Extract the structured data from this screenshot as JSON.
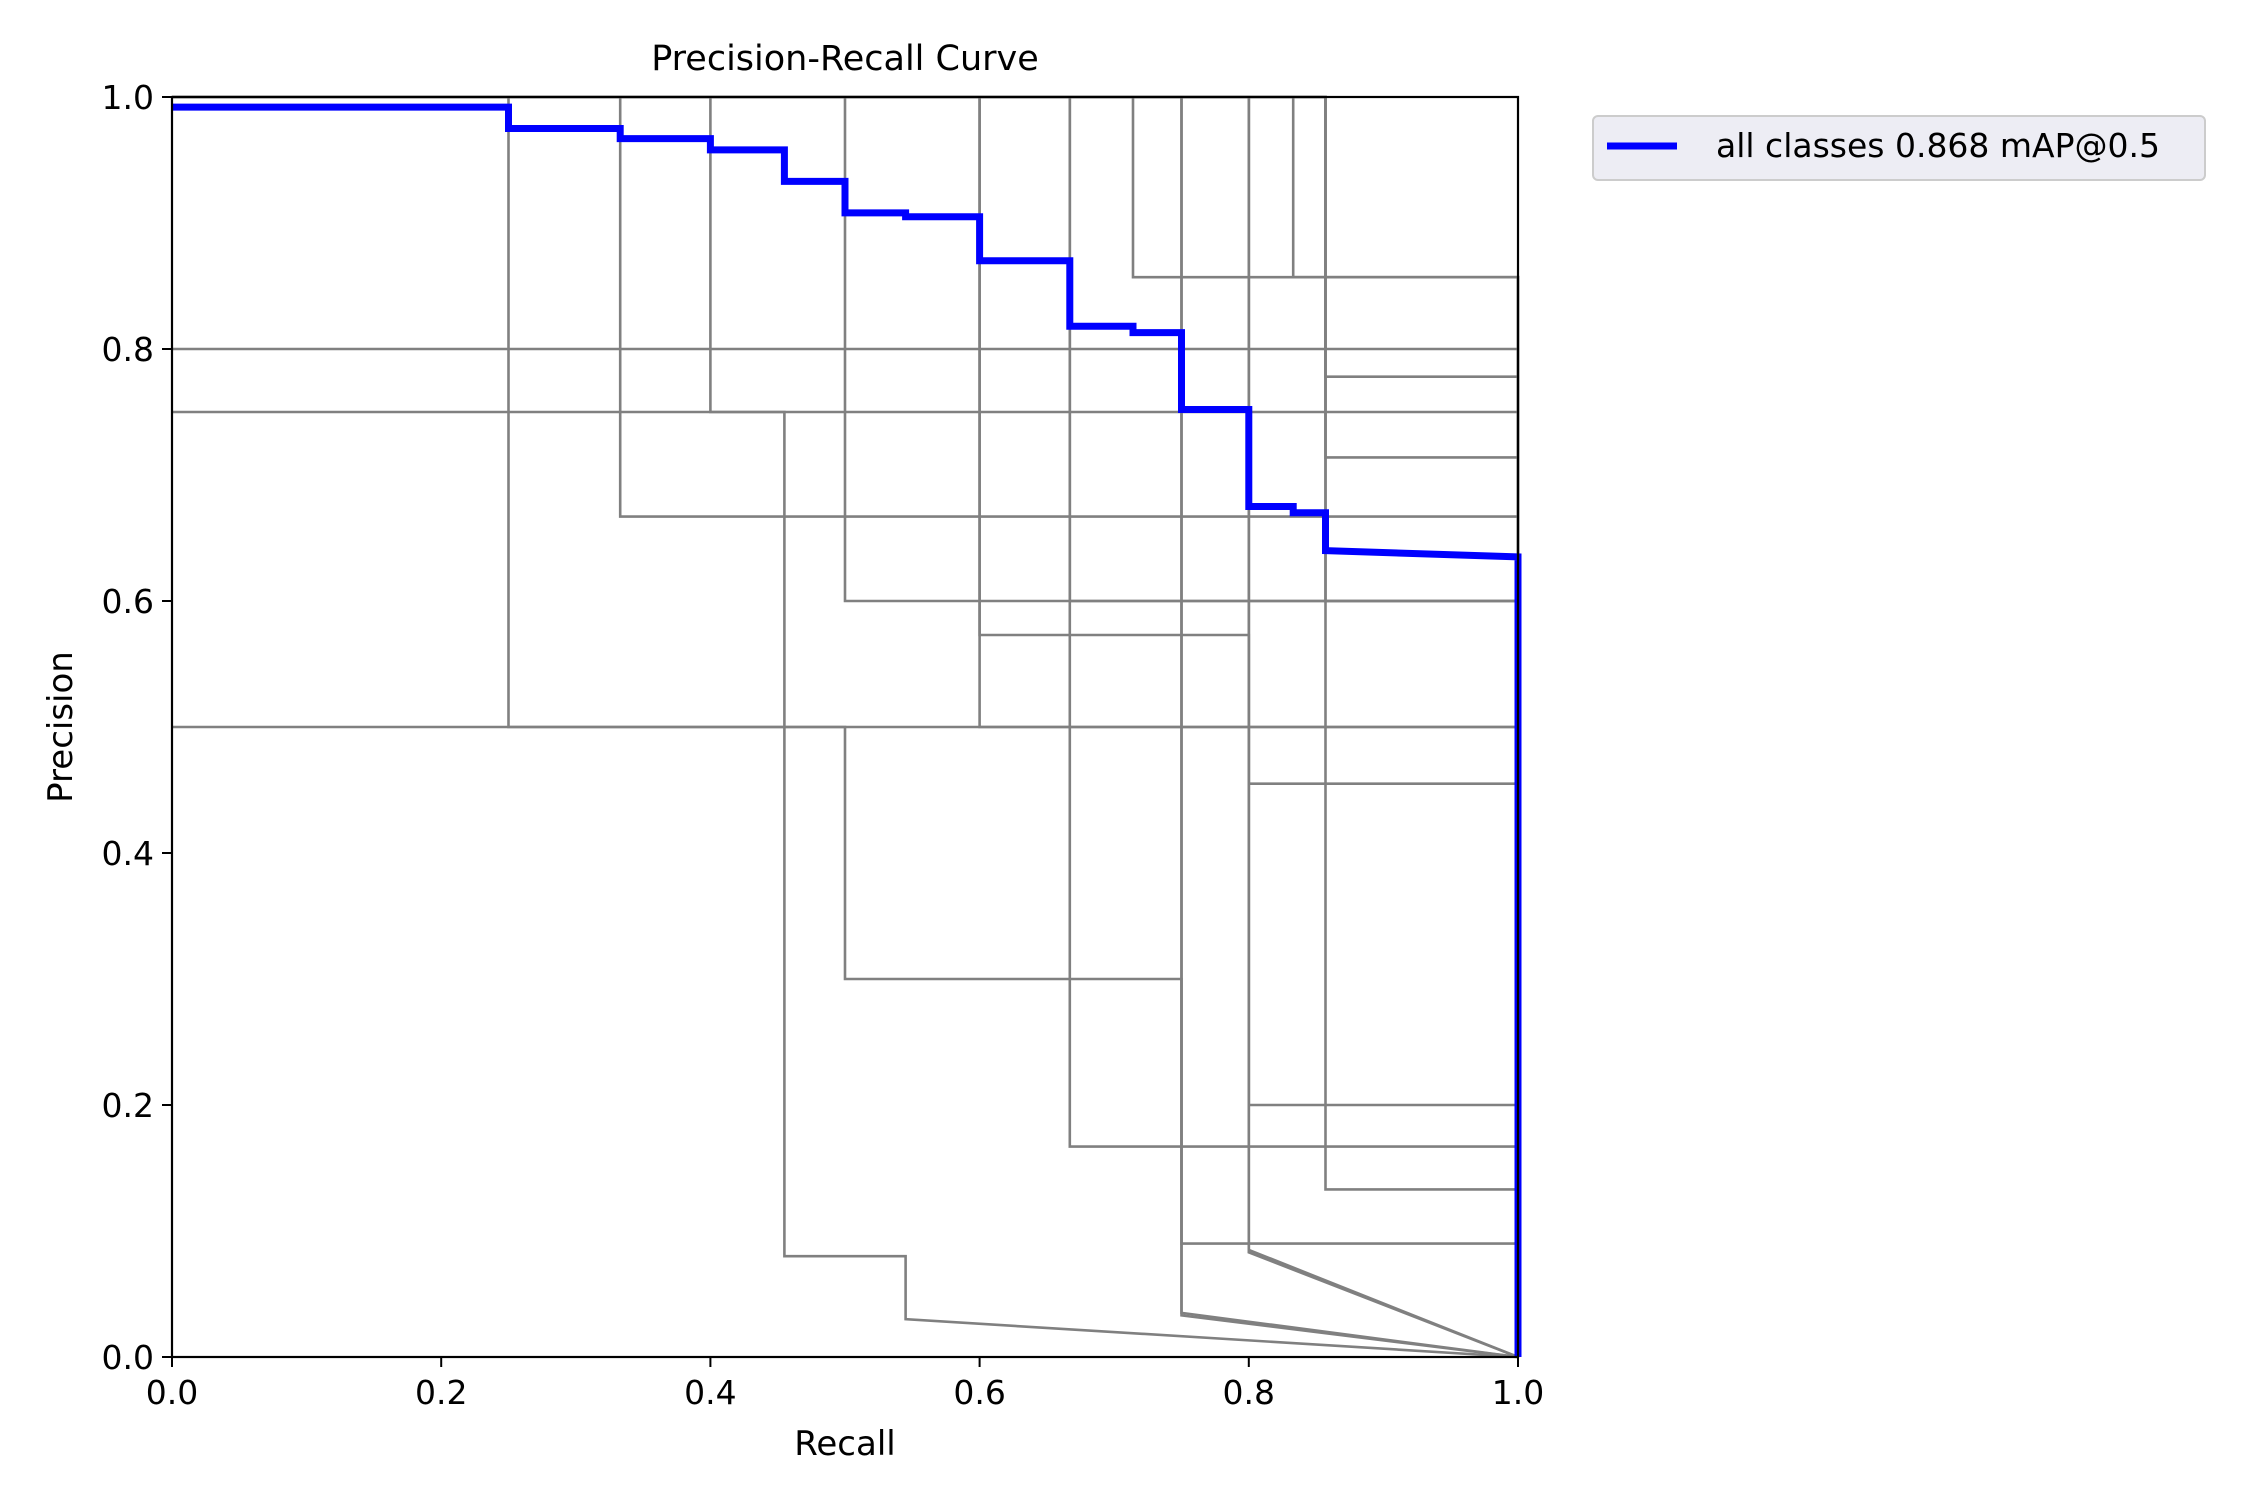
{
  "chart_data": {
    "type": "line",
    "title": "Precision-Recall Curve",
    "xlabel": "Recall",
    "ylabel": "Precision",
    "xlim": [
      0.0,
      1.0
    ],
    "ylim": [
      0.0,
      1.0
    ],
    "xticks": [
      "0.0",
      "0.2",
      "0.4",
      "0.6",
      "0.8",
      "1.0"
    ],
    "yticks": [
      "0.0",
      "0.2",
      "0.4",
      "0.6",
      "0.8",
      "1.0"
    ],
    "grid": false,
    "legend_position": "outside top-right",
    "series": [
      {
        "name": "all classes 0.868 mAP@0.5",
        "color": "#0000ff",
        "style": "bold",
        "x": [
          0.0,
          0.25,
          0.25,
          0.333,
          0.333,
          0.4,
          0.4,
          0.455,
          0.455,
          0.5,
          0.5,
          0.545,
          0.545,
          0.6,
          0.6,
          0.667,
          0.667,
          0.714,
          0.714,
          0.75,
          0.75,
          0.8,
          0.8,
          0.833,
          0.833,
          0.857,
          0.857,
          1.0,
          1.0
        ],
        "y": [
          0.992,
          0.992,
          0.975,
          0.975,
          0.967,
          0.967,
          0.958,
          0.958,
          0.933,
          0.933,
          0.908,
          0.908,
          0.905,
          0.905,
          0.87,
          0.87,
          0.818,
          0.818,
          0.813,
          0.813,
          0.752,
          0.752,
          0.675,
          0.675,
          0.67,
          0.67,
          0.64,
          0.635,
          0.0
        ]
      },
      {
        "color": "#808080",
        "x": [
          0.0,
          0.25,
          0.25,
          1.0,
          1.0
        ],
        "y": [
          1.0,
          1.0,
          0.5,
          0.5,
          0.0
        ]
      },
      {
        "color": "#808080",
        "x": [
          0.0,
          0.333,
          0.333,
          1.0,
          1.0
        ],
        "y": [
          1.0,
          1.0,
          0.667,
          0.667,
          0.0
        ]
      },
      {
        "color": "#808080",
        "x": [
          0.0,
          0.4,
          0.4,
          1.0,
          1.0
        ],
        "y": [
          1.0,
          1.0,
          0.75,
          0.75,
          0.0
        ]
      },
      {
        "color": "#808080",
        "x": [
          0.0,
          0.455,
          0.455,
          0.545,
          0.545,
          1.0
        ],
        "y": [
          0.75,
          0.75,
          0.08,
          0.08,
          0.03,
          0.0
        ]
      },
      {
        "color": "#808080",
        "x": [
          0.0,
          0.5,
          0.5,
          1.0,
          1.0
        ],
        "y": [
          1.0,
          1.0,
          0.6,
          0.6,
          0.0
        ]
      },
      {
        "color": "#808080",
        "x": [
          0.0,
          0.5,
          0.5,
          0.75,
          0.75,
          1.0
        ],
        "y": [
          0.5,
          0.5,
          0.3,
          0.3,
          0.035,
          0.0
        ]
      },
      {
        "color": "#808080",
        "x": [
          0.0,
          0.5,
          0.5,
          1.0,
          1.0
        ],
        "y": [
          0.8,
          0.8,
          0.8,
          0.8,
          0.0
        ]
      },
      {
        "color": "#808080",
        "x": [
          0.0,
          0.6,
          0.6,
          0.8,
          0.8,
          1.0
        ],
        "y": [
          1.0,
          1.0,
          0.573,
          0.573,
          0.085,
          0.0
        ]
      },
      {
        "color": "#808080",
        "x": [
          0.0,
          0.6,
          0.6,
          1.0,
          1.0
        ],
        "y": [
          1.0,
          1.0,
          0.5,
          0.5,
          0.0
        ]
      },
      {
        "color": "#808080",
        "x": [
          0.0,
          0.667,
          0.667,
          1.0,
          1.0
        ],
        "y": [
          1.0,
          1.0,
          0.6,
          0.6,
          0.0
        ]
      },
      {
        "color": "#808080",
        "x": [
          0.0,
          0.667,
          0.667,
          1.0,
          1.0
        ],
        "y": [
          1.0,
          1.0,
          0.167,
          0.167,
          0.0
        ]
      },
      {
        "color": "#808080",
        "x": [
          0.0,
          0.714,
          0.714,
          1.0,
          1.0
        ],
        "y": [
          1.0,
          1.0,
          0.857,
          0.857,
          0.0
        ]
      },
      {
        "color": "#808080",
        "x": [
          0.0,
          0.75,
          0.75,
          1.0,
          1.0
        ],
        "y": [
          1.0,
          1.0,
          0.09,
          0.09,
          0.0
        ]
      },
      {
        "color": "#808080",
        "x": [
          0.0,
          0.75,
          0.75,
          1.0
        ],
        "y": [
          1.0,
          1.0,
          0.033,
          0.0
        ]
      },
      {
        "color": "#808080",
        "x": [
          0.0,
          0.8,
          0.8,
          1.0,
          1.0
        ],
        "y": [
          1.0,
          1.0,
          0.2,
          0.2,
          0.0
        ]
      },
      {
        "color": "#808080",
        "x": [
          0.0,
          0.8,
          0.8,
          1.0,
          1.0
        ],
        "y": [
          1.0,
          1.0,
          0.455,
          0.455,
          0.0
        ]
      },
      {
        "color": "#808080",
        "x": [
          0.0,
          0.8,
          0.8,
          1.0
        ],
        "y": [
          1.0,
          1.0,
          0.083,
          0.0
        ]
      },
      {
        "color": "#808080",
        "x": [
          0.0,
          0.833,
          0.833,
          1.0,
          1.0
        ],
        "y": [
          1.0,
          1.0,
          0.857,
          0.857,
          0.0
        ]
      },
      {
        "color": "#808080",
        "x": [
          0.0,
          0.857,
          0.857,
          1.0,
          1.0
        ],
        "y": [
          1.0,
          1.0,
          0.778,
          0.778,
          0.0
        ]
      },
      {
        "color": "#808080",
        "x": [
          0.0,
          0.857,
          0.857,
          1.0,
          1.0
        ],
        "y": [
          1.0,
          1.0,
          0.714,
          0.714,
          0.0
        ]
      },
      {
        "color": "#808080",
        "x": [
          0.0,
          0.857,
          0.857,
          1.0,
          1.0
        ],
        "y": [
          1.0,
          1.0,
          0.133,
          0.133,
          0.0
        ]
      },
      {
        "color": "#808080",
        "x": [
          0.0,
          0.857,
          0.857,
          1.0,
          1.0
        ],
        "y": [
          1.0,
          1.0,
          0.6,
          0.6,
          0.0
        ]
      }
    ]
  }
}
